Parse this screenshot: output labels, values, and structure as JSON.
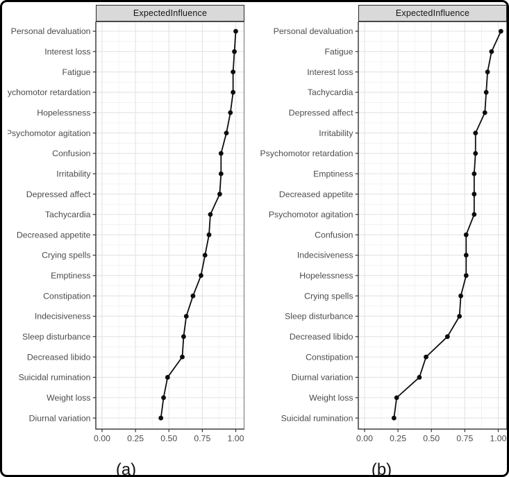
{
  "figure": {
    "background": "#ffffff",
    "border_color": "#000000"
  },
  "styles": {
    "strip_background": "#d9d9d9",
    "strip_border": "#262626",
    "strip_text_color": "#141414",
    "panel_background": "#ffffff",
    "panel_border": "#3d3d3d",
    "axis_label_color": "#4b4b4b",
    "tick_color": "#333333",
    "grid_major_color": "#e3e3e3",
    "grid_minor_color": "#f1f1f1",
    "line_color": "#0d0d0d",
    "point_color": "#0d0d0d",
    "caption_color": "#111111"
  },
  "chart_data": [
    {
      "type": "line",
      "title": "ExpectedInfluence",
      "caption": "(a)",
      "orientation": "horizontal",
      "marker": "point",
      "grid": true,
      "legend": false,
      "xlabel": "",
      "ylabel": "",
      "xlim": [
        0,
        1.0
      ],
      "xticks": [
        0,
        0.25,
        0.5,
        0.75,
        1.0
      ],
      "xtick_labels": [
        "0.00",
        "0.25",
        "0.50",
        "0.75",
        "1.00"
      ],
      "categories": [
        "Personal devaluation",
        "Interest loss",
        "Fatigue",
        "Psychomotor retardation",
        "Hopelessness",
        "Psychomotor agitation",
        "Confusion",
        "Irritability",
        "Depressed affect",
        "Tachycardia",
        "Decreased appetite",
        "Crying spells",
        "Emptiness",
        "Constipation",
        "Indecisiveness",
        "Sleep disturbance",
        "Decreased libido",
        "Suicidal rumination",
        "Weight loss",
        "Diurnal variation"
      ],
      "values": [
        1.0,
        0.99,
        0.98,
        0.98,
        0.96,
        0.93,
        0.89,
        0.89,
        0.88,
        0.81,
        0.8,
        0.77,
        0.74,
        0.68,
        0.63,
        0.61,
        0.6,
        0.49,
        0.46,
        0.44
      ]
    },
    {
      "type": "line",
      "title": "ExpectedInfluence",
      "caption": "(b)",
      "orientation": "horizontal",
      "marker": "point",
      "grid": true,
      "legend": false,
      "xlabel": "",
      "ylabel": "",
      "xlim": [
        0,
        1.0
      ],
      "xticks": [
        0,
        0.25,
        0.5,
        0.75,
        1.0
      ],
      "xtick_labels": [
        "0.00",
        "0.25",
        "0.50",
        "0.75",
        "1.00"
      ],
      "categories": [
        "Personal devaluation",
        "Fatigue",
        "Interest loss",
        "Tachycardia",
        "Depressed affect",
        "Irritability",
        "Psychomotor retardation",
        "Emptiness",
        "Decreased appetite",
        "Psychomotor agitation",
        "Confusion",
        "Indecisiveness",
        "Hopelessness",
        "Crying spells",
        "Sleep disturbance",
        "Decreased libido",
        "Constipation",
        "Diurnal variation",
        "Weight loss",
        "Suicidal rumination"
      ],
      "values": [
        1.02,
        0.95,
        0.92,
        0.91,
        0.9,
        0.83,
        0.83,
        0.82,
        0.82,
        0.82,
        0.76,
        0.76,
        0.76,
        0.72,
        0.71,
        0.62,
        0.46,
        0.41,
        0.24,
        0.22
      ]
    }
  ]
}
